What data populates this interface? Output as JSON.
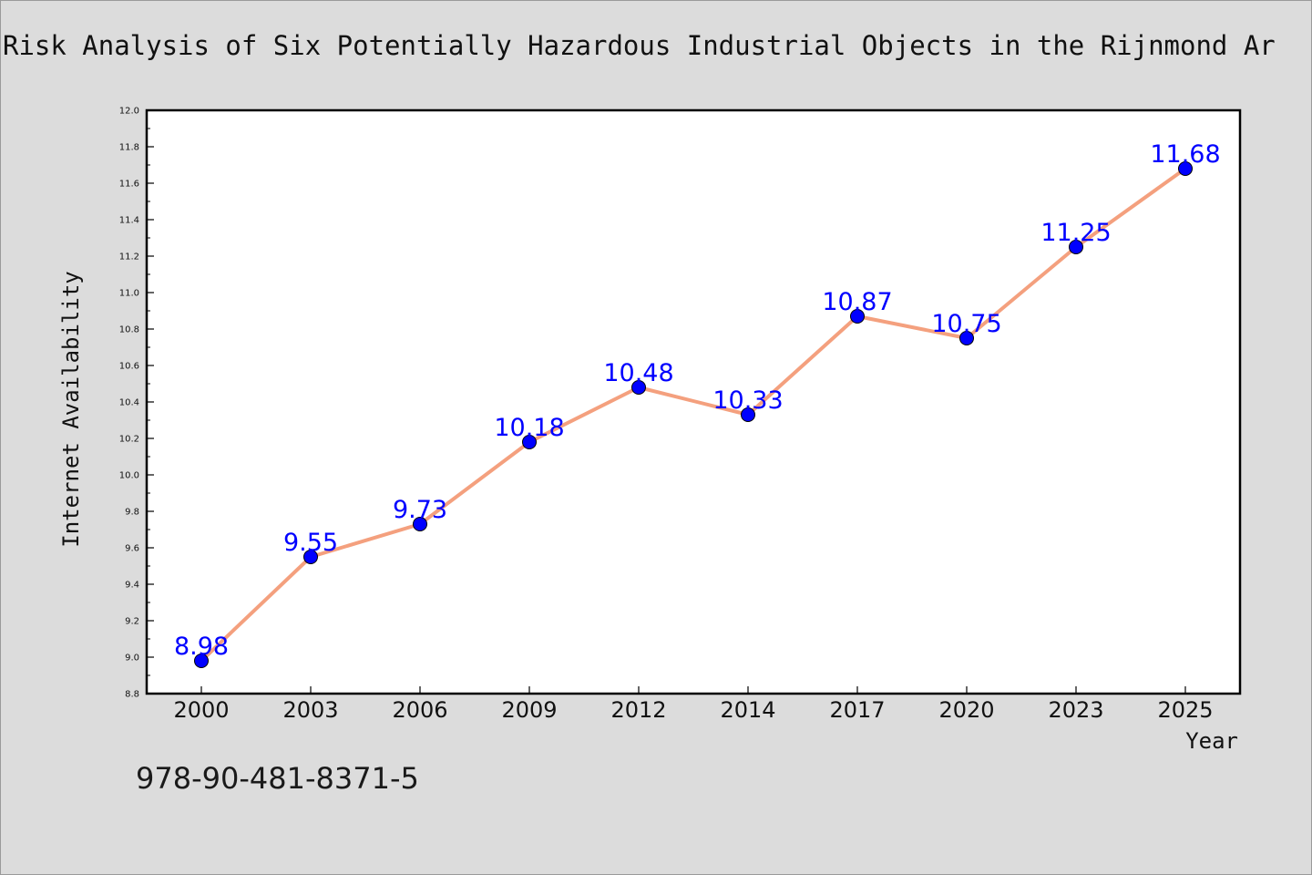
{
  "chart_data": {
    "type": "line",
    "title": "Risk Analysis of Six Potentially Hazardous Industrial Objects in the Rijnmond Ar",
    "xlabel": "Year",
    "ylabel": "Internet Availability",
    "categories": [
      "2000",
      "2003",
      "2006",
      "2009",
      "2012",
      "2014",
      "2017",
      "2020",
      "2023",
      "2025"
    ],
    "series": [
      {
        "values": [
          8.98,
          9.55,
          9.73,
          10.18,
          10.48,
          10.33,
          10.87,
          10.75,
          11.25,
          11.68
        ]
      }
    ],
    "data_labels": [
      "8.98",
      "9.55",
      "9.73",
      "10.18",
      "10.48",
      "10.33",
      "10.87",
      "10.75",
      "11.25",
      "11.68"
    ],
    "ylim": [
      8.8,
      12.0
    ],
    "yticks": [
      "8.8",
      "9.0",
      "9.2",
      "9.4",
      "9.6",
      "9.8",
      "10.0",
      "10.2",
      "10.4",
      "10.6",
      "10.8",
      "11.0",
      "11.2",
      "11.4",
      "11.6",
      "11.8",
      "12.0"
    ],
    "grid": false,
    "legend": "none",
    "colors": {
      "line": "#f4a07e",
      "marker": "#0000ff",
      "data_label": "#0000ff",
      "background": "#dcdcdc",
      "plot_area": "#ffffff"
    }
  },
  "annotation": "978-90-481-8371-5"
}
